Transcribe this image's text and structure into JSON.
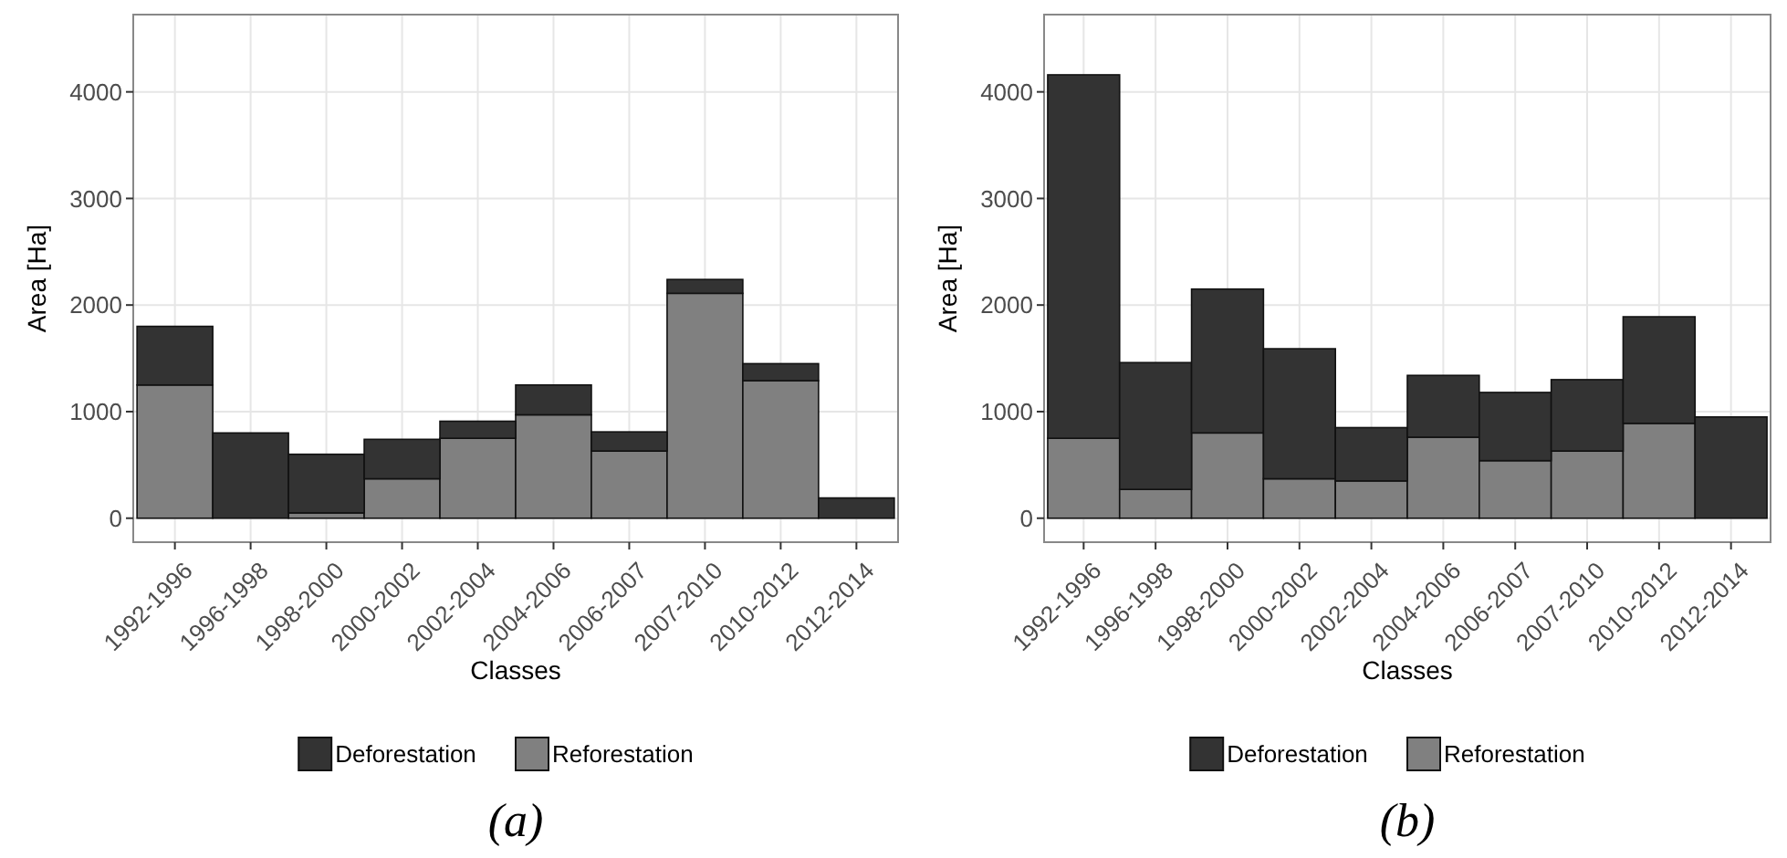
{
  "chart_data": [
    {
      "type": "bar",
      "stacked": true,
      "xlabel": "Classes",
      "ylabel": "Area [Ha]",
      "categories": [
        "1992-1996",
        "1996-1998",
        "1998-2000",
        "2000-2002",
        "2002-2004",
        "2004-2006",
        "2006-2007",
        "2007-2010",
        "2010-2012",
        "2012-2014"
      ],
      "ylim": [
        -225,
        4725
      ],
      "yticks": [
        0,
        1000,
        2000,
        3000,
        4000
      ],
      "grid": true,
      "legend": "bottom",
      "annotations": [
        "(a)"
      ],
      "series": [
        {
          "name": "Reforestation",
          "color": "#808080",
          "values": [
            1250,
            0,
            50,
            370,
            750,
            970,
            630,
            2110,
            1290,
            0
          ]
        },
        {
          "name": "Deforestation",
          "color": "#333333",
          "values": [
            550,
            800,
            550,
            370,
            160,
            280,
            180,
            130,
            160,
            190
          ]
        }
      ]
    },
    {
      "type": "bar",
      "stacked": true,
      "xlabel": "Classes",
      "ylabel": "Area [Ha]",
      "categories": [
        "1992-1996",
        "1996-1998",
        "1998-2000",
        "2000-2002",
        "2002-2004",
        "2004-2006",
        "2006-2007",
        "2007-2010",
        "2010-2012",
        "2012-2014"
      ],
      "ylim": [
        -225,
        4725
      ],
      "yticks": [
        0,
        1000,
        2000,
        3000,
        4000
      ],
      "grid": true,
      "legend": "bottom",
      "annotations": [
        "(b)"
      ],
      "series": [
        {
          "name": "Reforestation",
          "color": "#808080",
          "values": [
            750,
            270,
            800,
            370,
            350,
            760,
            540,
            630,
            890,
            0
          ]
        },
        {
          "name": "Deforestation",
          "color": "#333333",
          "values": [
            3410,
            1190,
            1350,
            1220,
            500,
            580,
            640,
            670,
            1000,
            950
          ]
        }
      ]
    }
  ]
}
